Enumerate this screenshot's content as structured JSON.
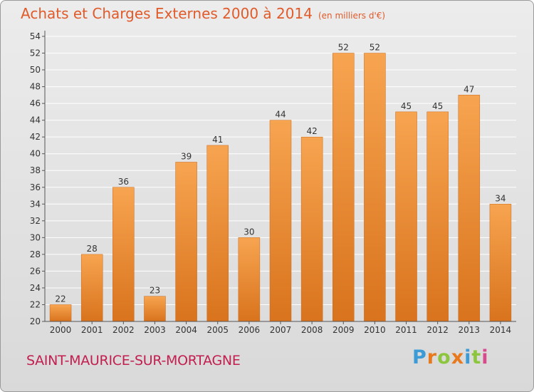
{
  "header": {
    "title": "Achats et Charges Externes 2000 à 2014",
    "unit": "(en milliers d'€)"
  },
  "footer": {
    "commune": "SAINT-MAURICE-SUR-MORTAGNE",
    "brand": "Proxiti",
    "brand_colors": [
      "#3a9bd6",
      "#e8791c",
      "#8cc63f",
      "#e8791c",
      "#3a9bd6",
      "#8cc63f",
      "#d94a8c"
    ]
  },
  "colors": {
    "bar_top": "#f7a450",
    "bar_bottom": "#d9731d",
    "grid": "#ffffff",
    "axis": "#555555"
  },
  "chart_data": {
    "type": "bar",
    "title": "Achats et Charges Externes 2000 à 2014",
    "subtitle": "(en milliers d'€)",
    "xlabel": "",
    "ylabel": "",
    "categories": [
      "2000",
      "2001",
      "2002",
      "2003",
      "2004",
      "2005",
      "2006",
      "2007",
      "2008",
      "2009",
      "2010",
      "2011",
      "2012",
      "2013",
      "2014"
    ],
    "values": [
      22,
      28,
      36,
      23,
      39,
      41,
      30,
      44,
      42,
      52,
      52,
      45,
      45,
      47,
      34
    ],
    "ylim": [
      20,
      54
    ],
    "yticks": [
      20,
      22,
      24,
      26,
      28,
      30,
      32,
      34,
      36,
      38,
      40,
      42,
      44,
      46,
      48,
      50,
      52,
      54
    ],
    "grid": true,
    "data_labels": true
  }
}
